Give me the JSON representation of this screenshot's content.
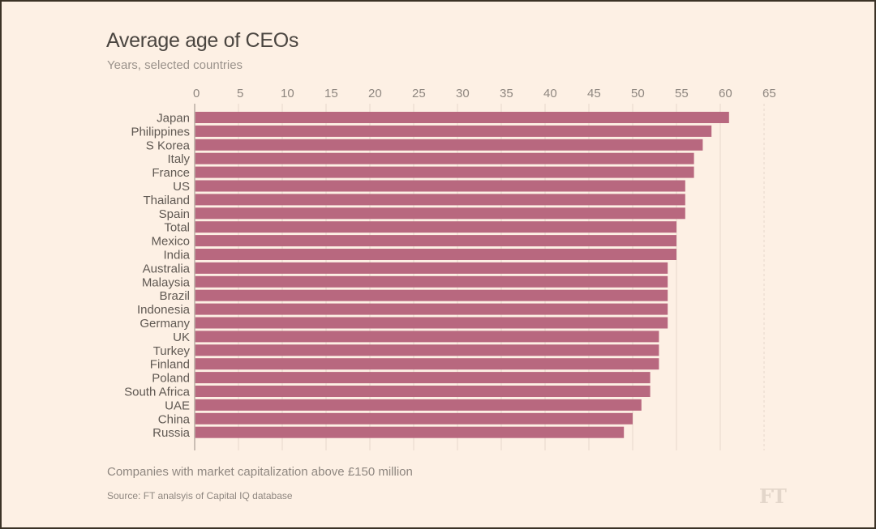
{
  "chart_data": {
    "type": "bar",
    "orientation": "horizontal",
    "title": "Average age of CEOs",
    "subtitle": "Years, selected countries",
    "xlabel": "",
    "ylabel": "",
    "xlim": [
      0,
      65
    ],
    "xticks": [
      0,
      5,
      10,
      15,
      20,
      25,
      30,
      35,
      40,
      45,
      50,
      55,
      60,
      65
    ],
    "grid": true,
    "categories": [
      "Japan",
      "Philippines",
      "S Korea",
      "Italy",
      "France",
      "US",
      "Thailand",
      "Spain",
      "Total",
      "Mexico",
      "India",
      "Australia",
      "Malaysia",
      "Brazil",
      "Indonesia",
      "Germany",
      "UK",
      "Turkey",
      "Finland",
      "Poland",
      "South Africa",
      "UAE",
      "China",
      "Russia"
    ],
    "values": [
      61,
      59,
      58,
      57,
      57,
      56,
      56,
      56,
      55,
      55,
      55,
      54,
      54,
      54,
      54,
      54,
      53,
      53,
      53,
      52,
      52,
      51,
      50,
      49
    ],
    "bar_color": "#b8687f",
    "note": "Companies with market capitalization above £150 million",
    "source": "Source: FT analsyis of Capital IQ database"
  },
  "branding": {
    "logo_text": "FT"
  },
  "colors": {
    "background": "#fdf0e4",
    "bar": "#b8687f",
    "grid": "#e6d9cd",
    "axis": "#b9aea4"
  }
}
